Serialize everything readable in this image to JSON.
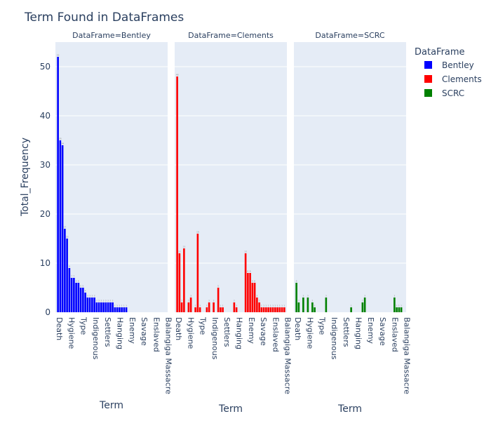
{
  "chart_data": {
    "type": "bar",
    "title": "Term Found in DataFrames",
    "xlabel": "Term",
    "ylabel": "Total_Frequency",
    "ylim": [
      0,
      55
    ],
    "yticks": [
      0,
      10,
      20,
      30,
      40,
      50
    ],
    "grid": true,
    "legend_title": "DataFrame",
    "legend_position": "right",
    "x_tick_labels": [
      "Death",
      "Hygiene",
      "Type",
      "Indigenous",
      "Settlers",
      "Hanging",
      "Enemy",
      "Savage",
      "Enslaved",
      "Balangiga Massacre"
    ],
    "facets": [
      {
        "label": "DataFrame=Bentley",
        "name": "Bentley",
        "color": "#0000ff",
        "values": [
          52,
          35,
          34,
          17,
          15,
          9,
          7,
          7,
          6,
          6,
          5,
          5,
          4,
          3,
          3,
          3,
          3,
          2,
          2,
          2,
          2,
          2,
          2,
          2,
          2,
          1,
          1,
          1,
          1,
          1,
          1
        ]
      },
      {
        "label": "DataFrame=Clements",
        "name": "Clements",
        "color": "#ff0000",
        "values": [
          48,
          12,
          2,
          13,
          0,
          2,
          3,
          0,
          1,
          16,
          1,
          0,
          0,
          1,
          2,
          0,
          2,
          0,
          5,
          1,
          1,
          0,
          0,
          0,
          0,
          2,
          1,
          0,
          0,
          0,
          12,
          8,
          8,
          6,
          6,
          3,
          2,
          1,
          1,
          1,
          1,
          1,
          1,
          1,
          1,
          1,
          1,
          1
        ]
      },
      {
        "label": "DataFrame=SCRC",
        "name": "SCRC",
        "color": "#008000",
        "values": [
          6,
          2,
          0,
          3,
          0,
          3,
          0,
          2,
          1,
          0,
          0,
          0,
          0,
          3,
          0,
          0,
          0,
          0,
          0,
          0,
          0,
          0,
          0,
          0,
          1,
          0,
          0,
          0,
          0,
          2,
          3,
          0,
          0,
          0,
          0,
          0,
          0,
          0,
          0,
          0,
          0,
          0,
          0,
          3,
          1,
          1,
          1
        ]
      }
    ]
  }
}
